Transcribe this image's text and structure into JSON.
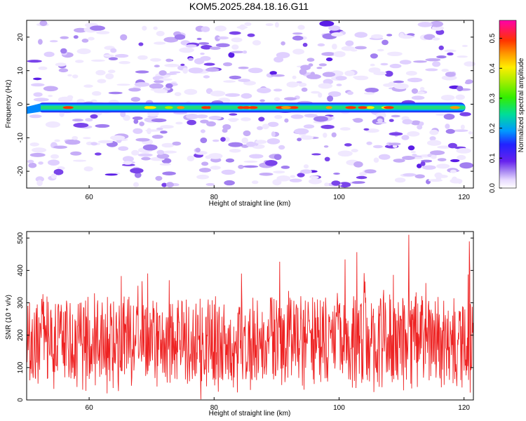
{
  "title": "KOM5.2025.284.18.16.G11",
  "spectrogram": {
    "type": "heatmap",
    "xlabel": "Height of straight line (km)",
    "ylabel": "Frequency (Hz)",
    "xlim": [
      50,
      121.5
    ],
    "ylim": [
      -25,
      25
    ],
    "xticks": [
      60,
      80,
      100,
      120
    ],
    "yticks": [
      -20,
      -10,
      0,
      10,
      20
    ],
    "ridge": {
      "x_start": 50,
      "x_end": 120,
      "freq": [
        -1.5,
        -0.5
      ],
      "peak_amplitude": 0.45
    },
    "background_amplitude_range": [
      0.0,
      0.15
    ]
  },
  "colorbar": {
    "label": "Normalized spectral amplitude",
    "vmin": 0.0,
    "vmax": 0.56,
    "ticks": [
      "0.0",
      "0.1",
      "0.2",
      "0.3",
      "0.4",
      "0.5"
    ]
  },
  "snr": {
    "type": "line",
    "xlabel": "Height of straight line (km)",
    "ylabel": "SNR (10 * v/v)",
    "xlim": [
      50,
      121.5
    ],
    "ylim": [
      0,
      520
    ],
    "xticks": [
      60,
      80,
      100,
      120
    ],
    "yticks": [
      0,
      100,
      200,
      300,
      400,
      500
    ],
    "color": "#ee2222",
    "mean_value": 190,
    "typical_range": [
      60,
      380
    ],
    "max_value": 510
  }
}
